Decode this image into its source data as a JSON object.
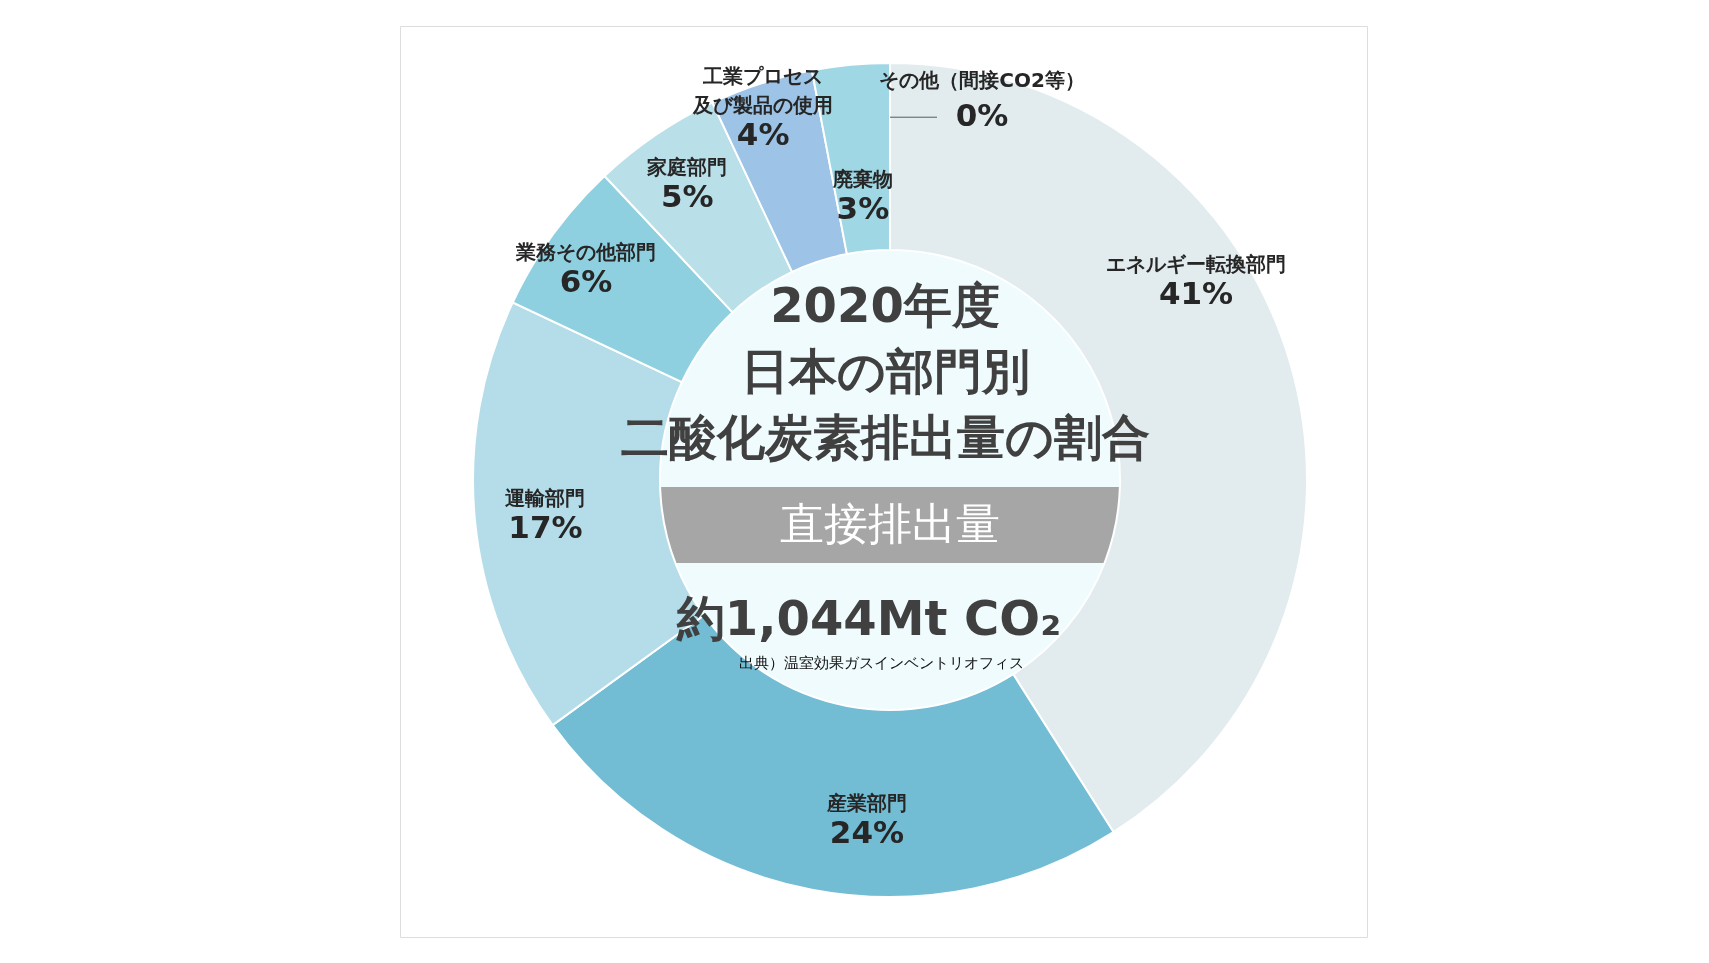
{
  "chart_data": {
    "type": "donut",
    "title": "2020年度日本の部門別二酸化炭素排出量の割合",
    "subtitle": "直接排出量",
    "categories": [
      "エネルギー転換部門",
      "産業部門",
      "運輸部門",
      "業務その他部門",
      "家庭部門",
      "工業プロセス及び製品の使用",
      "廃棄物",
      "その他（間接CO2等）"
    ],
    "values": [
      41,
      24,
      17,
      6,
      5,
      4,
      3,
      0
    ],
    "colors": [
      "#e2ecee",
      "#72bcd4",
      "#b4dde9",
      "#8ed0e0",
      "#b9dfe8",
      "#9dc3e6",
      "#9fd7e4",
      "#c8e9f0"
    ],
    "value_labels": [
      "41%",
      "24%",
      "17%",
      "6%",
      "5%",
      "4%",
      "3%",
      "0%"
    ],
    "annotations": [
      "約1,044Mt CO₂",
      "出典）温室効果ガスインベントリオフィス"
    ]
  }
}
